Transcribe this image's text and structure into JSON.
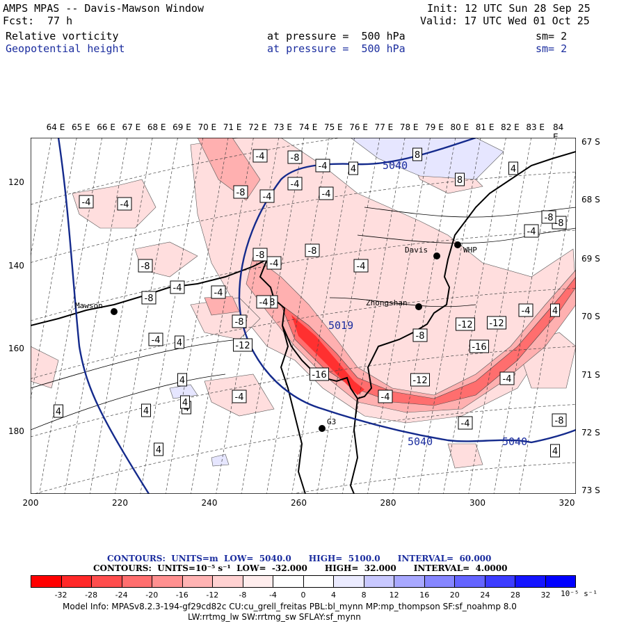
{
  "header": {
    "title": "AMPS MPAS -- Davis-Mawson Window",
    "fcst_label": "Fcst:",
    "fcst_value": "77 h",
    "init": "Init: 12 UTC Sun 28 Sep 25",
    "valid": "Valid: 17 UTC Wed 01 Oct 25",
    "field1": {
      "name": "Relative vorticity",
      "level": "at pressure =  500 hPa",
      "smooth": "sm= 2"
    },
    "field2": {
      "name": "Geopotential height",
      "level": "at pressure =  500 hPa",
      "smooth": "sm= 2"
    }
  },
  "map": {
    "lon_labels": [
      "64 E",
      "65 E",
      "66 E",
      "67 E",
      "68 E",
      "69 E",
      "70 E",
      "71 E",
      "72 E",
      "73 E",
      "74 E",
      "75 E",
      "76 E",
      "77 E",
      "78 E",
      "79 E",
      "80 E",
      "81 E",
      "82 E",
      "83 E",
      "84 E"
    ],
    "lat_labels": [
      "67 S",
      "68 S",
      "69 S",
      "70 S",
      "71 S",
      "72 S",
      "73 S"
    ],
    "x_ticks": [
      "200",
      "220",
      "240",
      "260",
      "280",
      "300",
      "320"
    ],
    "y_ticks": [
      "120",
      "140",
      "160",
      "180"
    ],
    "stations": [
      {
        "name": "Mawson"
      },
      {
        "name": "Davis"
      },
      {
        "name": "WHP"
      },
      {
        "name": "Zhongshan"
      },
      {
        "name": "G3"
      }
    ],
    "height_labels": [
      "5040",
      "5019",
      "5040",
      "5040"
    ],
    "vort_labels": [
      "-4",
      "-8",
      "-4",
      "-4",
      "-4",
      "-8",
      "-4",
      "-4",
      "-4",
      "-4",
      "-8",
      "-8",
      "-4",
      "-8",
      "-4",
      "-8",
      "-4",
      "-8",
      "-8",
      "-12",
      "-4",
      "-8",
      "-16",
      "-12",
      "-16",
      "-12",
      "-12",
      "-8",
      "-4",
      "-4",
      "-4",
      "-4",
      "-8",
      "-8",
      "-4",
      "-4",
      "-4",
      "4",
      "4",
      "8",
      "8",
      "4",
      "4",
      "4",
      "4",
      "4",
      "4",
      "4",
      "4",
      "4"
    ]
  },
  "contours_info": {
    "line1": "CONTOURS:  UNITS=m  LOW=  5040.0      HIGH=  5100.0      INTERVAL=  60.000",
    "line2": "CONTOURS:  UNITS=10⁻⁵ s⁻¹  LOW=  -32.000      HIGH=  32.000      INTERVAL=  4.0000"
  },
  "colorbar": {
    "colors": [
      "#ff0000",
      "#ff2828",
      "#ff4d4d",
      "#ff6e6e",
      "#ff9090",
      "#ffb3b3",
      "#ffd1d1",
      "#ffeded",
      "#ffffff",
      "#ffffff",
      "#ebebff",
      "#c8c8ff",
      "#a8a8ff",
      "#8686ff",
      "#6464ff",
      "#3c3cff",
      "#1414ff",
      "#0000ff"
    ],
    "ticks": [
      "-32",
      "-28",
      "-24",
      "-20",
      "-16",
      "-12",
      "-8",
      "-4",
      "0",
      "4",
      "8",
      "12",
      "16",
      "20",
      "24",
      "28",
      "32"
    ],
    "units": "10⁻⁵ s⁻¹"
  },
  "footer": {
    "line1": "Model Info: MPASv8.2.3-194-gf29cd82c CU:cu_grell_freitas PBL:bl_mynn MP:mp_thompson SF:sf_noahmp 8.0",
    "line2": "LW:rrtmg_lw SW:rrtmg_sw SFLAY:sf_mynn"
  }
}
